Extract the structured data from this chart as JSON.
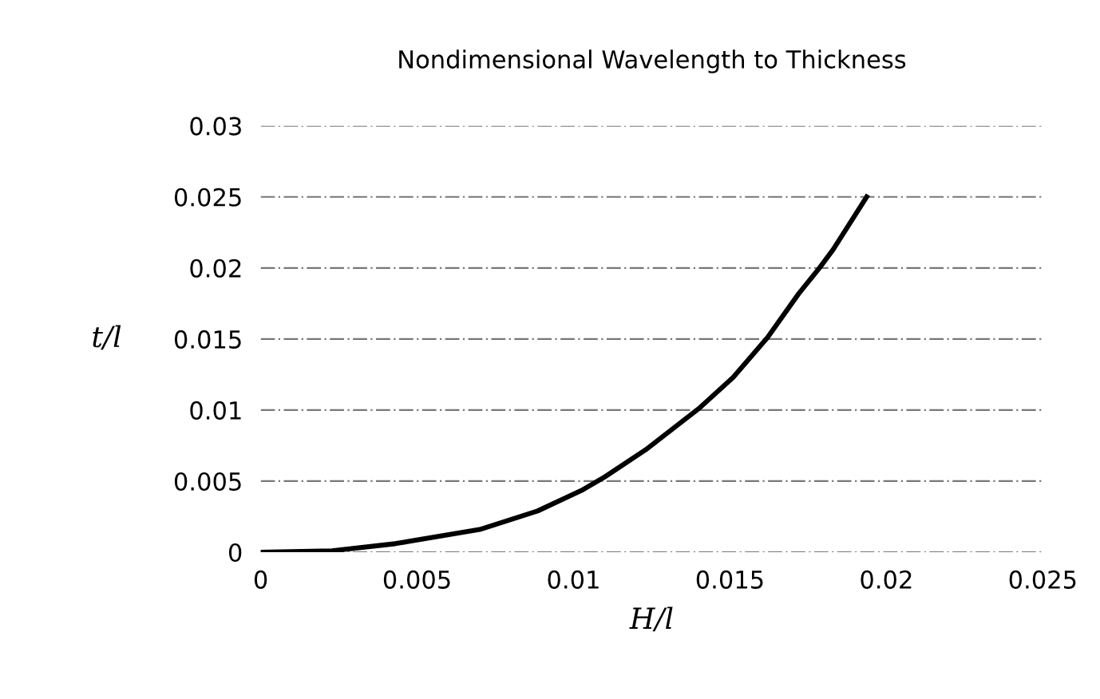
{
  "chart_data": {
    "type": "line",
    "title": "Nondimensional Wavelength to Thickness",
    "xlabel": "H/l",
    "ylabel": "t/l",
    "series": [
      {
        "color": "#000000",
        "x": [
          0,
          0.00228,
          0.0043,
          0.007,
          0.00885,
          0.0103,
          0.011,
          0.0123,
          0.014,
          0.0151,
          0.0162,
          0.0172,
          0.01786,
          0.0183,
          0.01937
        ],
        "values": [
          0,
          0.0001,
          0.0006,
          0.0016,
          0.0029,
          0.0044,
          0.0053,
          0.0072,
          0.0101,
          0.0123,
          0.0151,
          0.0182,
          0.02,
          0.0213,
          0.025
        ]
      }
    ],
    "xlim": [
      0,
      0.025
    ],
    "xticks": [
      0,
      0.005,
      0.01,
      0.015,
      0.02,
      0.025
    ],
    "ylim": [
      0,
      0.03
    ],
    "yticks": [
      0,
      0.005,
      0.01,
      0.015,
      0.02,
      0.025,
      0.03
    ],
    "grid": "y",
    "legend": false,
    "marker": "none",
    "line_style": "solid"
  }
}
